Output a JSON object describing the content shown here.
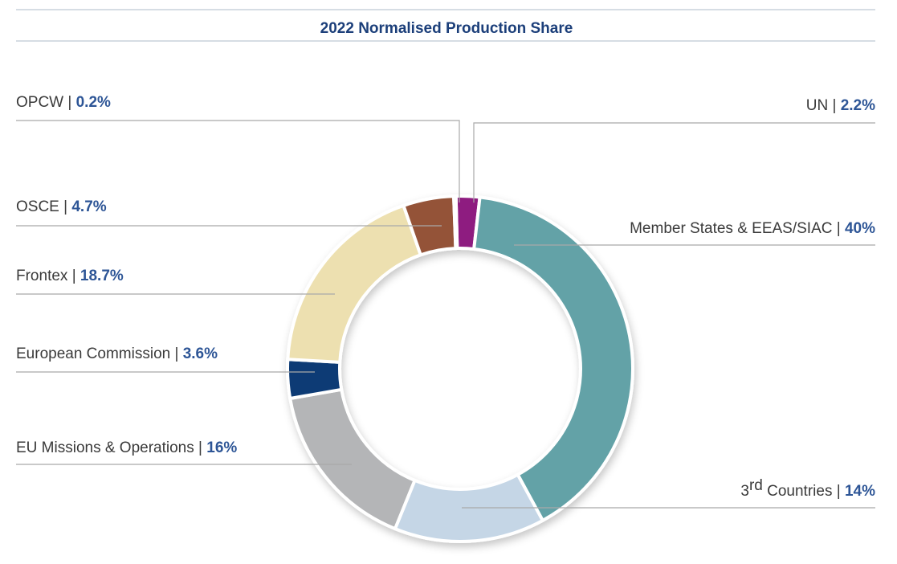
{
  "chart_data": {
    "type": "pie",
    "title": "2022 Normalised Production Share",
    "donut": true,
    "slices": [
      {
        "name": "UN",
        "value": 2.2,
        "label": "2.2%",
        "color": "#8e1a80"
      },
      {
        "name": "Member States & EEAS/SIAC",
        "value": 40,
        "label": "40%",
        "color": "#63a2a7"
      },
      {
        "name": "3rd Countries",
        "name_main": "3",
        "name_sup": "rd",
        "name_rest": " Countries",
        "value": 14,
        "label": "14%",
        "color": "#c5d6e6"
      },
      {
        "name": "EU Missions & Operations",
        "value": 16,
        "label": "16%",
        "color": "#b4b5b7"
      },
      {
        "name": "European Commission",
        "value": 3.6,
        "label": "3.6%",
        "color": "#0d3b75"
      },
      {
        "name": "Frontex",
        "value": 18.7,
        "label": "18.7%",
        "color": "#ede0b0"
      },
      {
        "name": "OSCE",
        "value": 4.7,
        "label": "4.7%",
        "color": "#945239"
      },
      {
        "name": "OPCW",
        "value": 0.2,
        "label": "0.2%",
        "color": "#6e6e6e"
      }
    ],
    "colors": {
      "title": "#1c3f7a",
      "value": "#2d5596"
    }
  }
}
